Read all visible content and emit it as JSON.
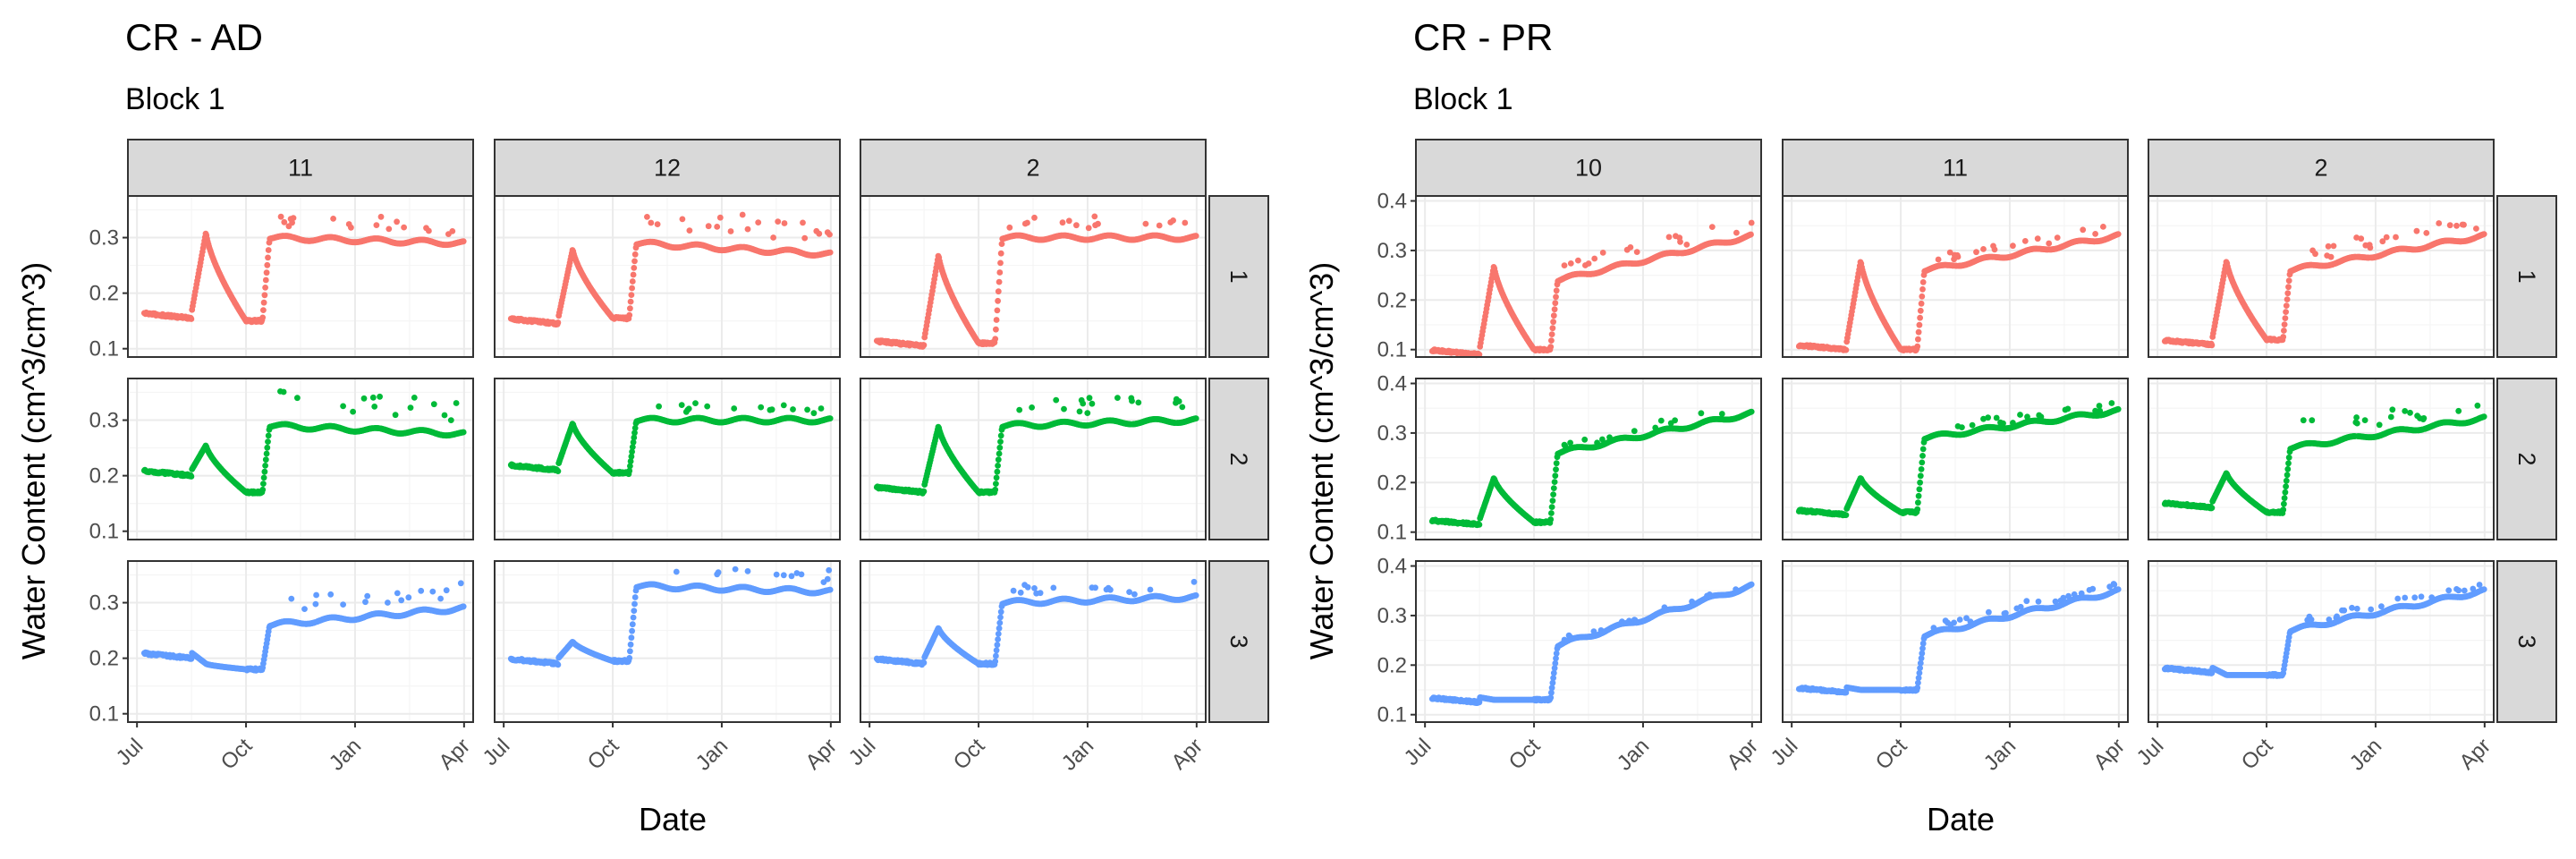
{
  "colors": {
    "row1": "#F8766D",
    "row2": "#00BA38",
    "row3": "#619CFF",
    "strip_fill": "#D9D9D9",
    "grid_major": "#EBEBEB",
    "grid_minor": "#F5F5F5",
    "panel_border": "#333333"
  },
  "chart_data": [
    {
      "type": "scatter",
      "title": "CR - AD",
      "subtitle": "Block 1",
      "xlabel": "Date",
      "ylabel": "Water Content (cm^3/cm^3)",
      "x_ticks": [
        "Jul",
        "Oct",
        "Jan",
        "Apr"
      ],
      "y_ticks": [
        0.1,
        0.2,
        0.3
      ],
      "ylim": [
        0.085,
        0.375
      ],
      "column_labels": [
        "11",
        "12",
        "2"
      ],
      "row_labels": [
        "1",
        "2",
        "3"
      ],
      "panels": [
        [
          {
            "baseline": 0.165,
            "peak": 0.31,
            "trough": 0.15,
            "after": 0.3,
            "end": 0.29,
            "spikes": 0.04
          },
          {
            "baseline": 0.155,
            "peak": 0.28,
            "trough": 0.155,
            "after": 0.29,
            "end": 0.27,
            "spikes": 0.06
          },
          {
            "baseline": 0.115,
            "peak": 0.27,
            "trough": 0.11,
            "after": 0.3,
            "end": 0.3,
            "spikes": 0.04
          }
        ],
        [
          {
            "baseline": 0.21,
            "peak": 0.255,
            "trough": 0.17,
            "after": 0.29,
            "end": 0.275,
            "spikes": 0.06
          },
          {
            "baseline": 0.22,
            "peak": 0.295,
            "trough": 0.205,
            "after": 0.3,
            "end": 0.3,
            "spikes": 0.03
          },
          {
            "baseline": 0.18,
            "peak": 0.29,
            "trough": 0.17,
            "after": 0.29,
            "end": 0.3,
            "spikes": 0.05
          }
        ],
        [
          {
            "baseline": 0.21,
            "peak": 0.19,
            "trough": 0.18,
            "after": 0.26,
            "end": 0.29,
            "spikes": 0.05
          },
          {
            "baseline": 0.2,
            "peak": 0.23,
            "trough": 0.195,
            "after": 0.33,
            "end": 0.32,
            "spikes": 0.04
          },
          {
            "baseline": 0.2,
            "peak": 0.255,
            "trough": 0.19,
            "after": 0.3,
            "end": 0.31,
            "spikes": 0.03
          }
        ]
      ]
    },
    {
      "type": "scatter",
      "title": "CR - PR",
      "subtitle": "Block 1",
      "xlabel": "Date",
      "ylabel": "Water Content (cm^3/cm^3)",
      "x_ticks": [
        "Jul",
        "Oct",
        "Jan",
        "Apr"
      ],
      "y_ticks": [
        0.1,
        0.2,
        0.3,
        0.4
      ],
      "ylim": [
        0.085,
        0.41
      ],
      "column_labels": [
        "10",
        "11",
        "2"
      ],
      "row_labels": [
        "1",
        "2",
        "3"
      ],
      "panels": [
        [
          {
            "baseline": 0.1,
            "peak": 0.27,
            "trough": 0.1,
            "after": 0.24,
            "end": 0.33,
            "spikes": 0.04
          },
          {
            "baseline": 0.11,
            "peak": 0.28,
            "trough": 0.1,
            "after": 0.26,
            "end": 0.33,
            "spikes": 0.03
          },
          {
            "baseline": 0.12,
            "peak": 0.28,
            "trough": 0.12,
            "after": 0.26,
            "end": 0.33,
            "spikes": 0.04
          }
        ],
        [
          {
            "baseline": 0.125,
            "peak": 0.21,
            "trough": 0.12,
            "after": 0.26,
            "end": 0.34,
            "spikes": 0.02
          },
          {
            "baseline": 0.145,
            "peak": 0.21,
            "trough": 0.14,
            "after": 0.29,
            "end": 0.345,
            "spikes": 0.02
          },
          {
            "baseline": 0.16,
            "peak": 0.22,
            "trough": 0.14,
            "after": 0.27,
            "end": 0.33,
            "spikes": 0.05
          }
        ],
        [
          {
            "baseline": 0.135,
            "peak": 0.13,
            "trough": 0.13,
            "after": 0.24,
            "end": 0.36,
            "spikes": 0.01
          },
          {
            "baseline": 0.155,
            "peak": 0.15,
            "trough": 0.15,
            "after": 0.26,
            "end": 0.35,
            "spikes": 0.02
          },
          {
            "baseline": 0.195,
            "peak": 0.18,
            "trough": 0.18,
            "after": 0.27,
            "end": 0.35,
            "spikes": 0.02
          }
        ]
      ]
    }
  ]
}
